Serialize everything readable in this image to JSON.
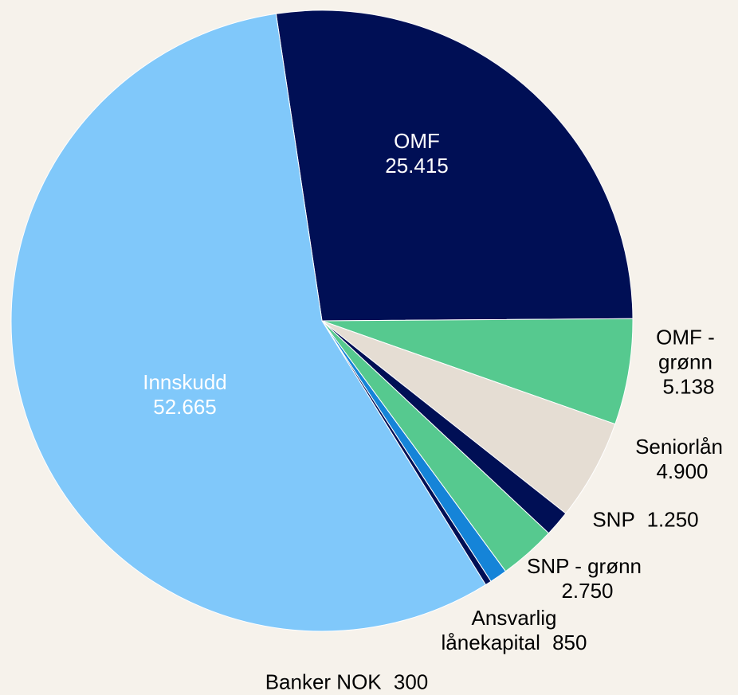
{
  "chart_data": {
    "type": "pie",
    "categories": [
      "OMF",
      "OMF - grønn",
      "Seniorlån",
      "SNP",
      "SNP - grønn",
      "Ansvarlig lånekapital",
      "Banker NOK",
      "Innskudd"
    ],
    "values": [
      25415,
      5138,
      4900,
      1250,
      2750,
      850,
      300,
      52665
    ],
    "value_labels": [
      "25.415",
      "5.138",
      "4.900",
      "1.250",
      "2.750",
      "850",
      "300",
      "52.665"
    ],
    "colors": [
      "#000f55",
      "#56c98f",
      "#e5ddd3",
      "#000f55",
      "#56c98f",
      "#1584d8",
      "#000f55",
      "#80c8fa"
    ]
  }
}
